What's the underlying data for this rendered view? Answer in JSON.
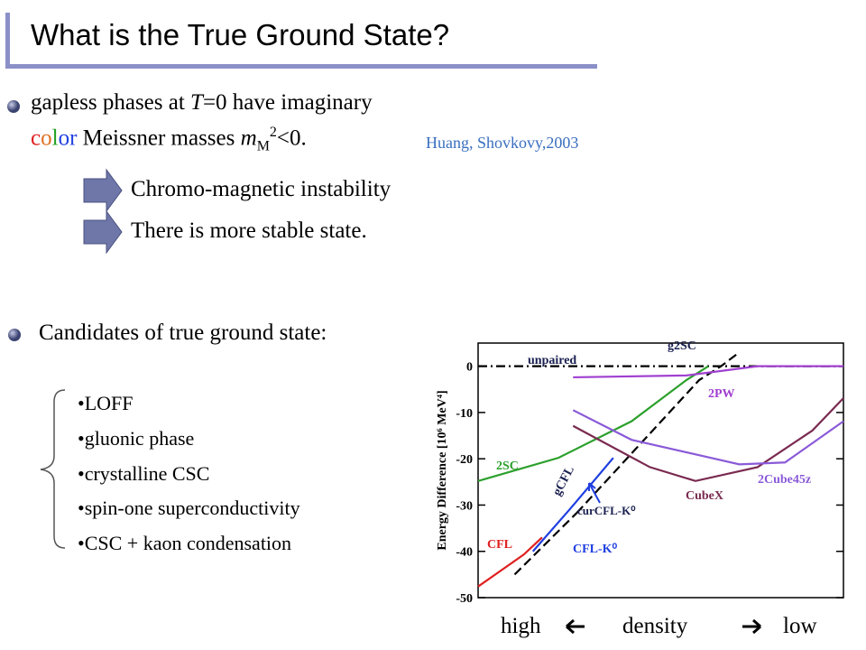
{
  "title": "What is the True Ground State?",
  "bullet1": {
    "line1": [
      "gapless phases at ",
      "T",
      "=0 have imaginary"
    ],
    "line2": {
      "color_letters": [
        "c",
        "o",
        "l",
        "o",
        "r"
      ],
      "parts": [
        " Meissner masses ",
        "m",
        "M",
        "2",
        "<0."
      ]
    },
    "citation": "Huang, Shovkovy,2003"
  },
  "arrows": [
    "Chromo-magnetic instability",
    "There is more stable state."
  ],
  "bullet2": {
    "heading": "Candidates of true ground state:",
    "items": [
      "•LOFF",
      "•gluonic phase",
      "•crystalline CSC",
      "•spin-one superconductivity",
      "•CSC + kaon condensation"
    ]
  },
  "density_caption": [
    "high",
    "density",
    "low"
  ],
  "chart_data": {
    "type": "line",
    "y_label": "Energy Difference [10⁶ MeV⁴]",
    "xlim": [
      0,
      200
    ],
    "ylim": [
      -50,
      5
    ],
    "yticks": [
      0,
      -10,
      -20,
      -30,
      -40,
      -50
    ],
    "annotation": "curCFL-K⁰",
    "series": [
      {
        "name": "unpaired",
        "color": "#000000",
        "dash": "dashdot",
        "x": [
          0,
          200
        ],
        "values": [
          0,
          0
        ]
      },
      {
        "name": "g2SC",
        "color": "#000000",
        "dash": "dashed",
        "x": [
          54,
          121,
          133,
          143
        ],
        "values": [
          -31.7,
          -3,
          0,
          3
        ]
      },
      {
        "name": "2SC",
        "color": "#2ca02c",
        "dash": "solid",
        "x": [
          0,
          44,
          84,
          114,
          126
        ],
        "values": [
          -24.8,
          -19.8,
          -11.9,
          -3,
          0
        ]
      },
      {
        "name": "2PW",
        "color": "#a040d0",
        "dash": "solid",
        "x": [
          52,
          114,
          153,
          200
        ],
        "values": [
          -2.4,
          -2,
          0,
          0
        ]
      },
      {
        "name": "CFL",
        "color": "#e02020",
        "dash": "solid",
        "x": [
          0,
          25,
          35
        ],
        "values": [
          -47.6,
          -40.7,
          -37
        ]
      },
      {
        "name": "CFL-K⁰",
        "color": "#1f3fe0",
        "dash": "solid",
        "x": [
          30,
          50,
          74
        ],
        "values": [
          -40,
          -31,
          -19.8
        ]
      },
      {
        "name": "gCFL",
        "color": "#000000",
        "dash": "dashed",
        "x": [
          20,
          54
        ],
        "values": [
          -45,
          -31.7
        ]
      },
      {
        "name": "CubeX",
        "color": "#7a2a50",
        "dash": "solid",
        "x": [
          52,
          94,
          119,
          153,
          183,
          200
        ],
        "values": [
          -12.9,
          -21.8,
          -24.8,
          -21.8,
          -13.9,
          -6.9
        ]
      },
      {
        "name": "2Cube45z",
        "color": "#8a5ad8",
        "dash": "solid",
        "x": [
          52,
          84,
          143,
          168,
          200
        ],
        "values": [
          -9.5,
          -15.9,
          -21.2,
          -20.8,
          -11.9
        ]
      }
    ]
  }
}
